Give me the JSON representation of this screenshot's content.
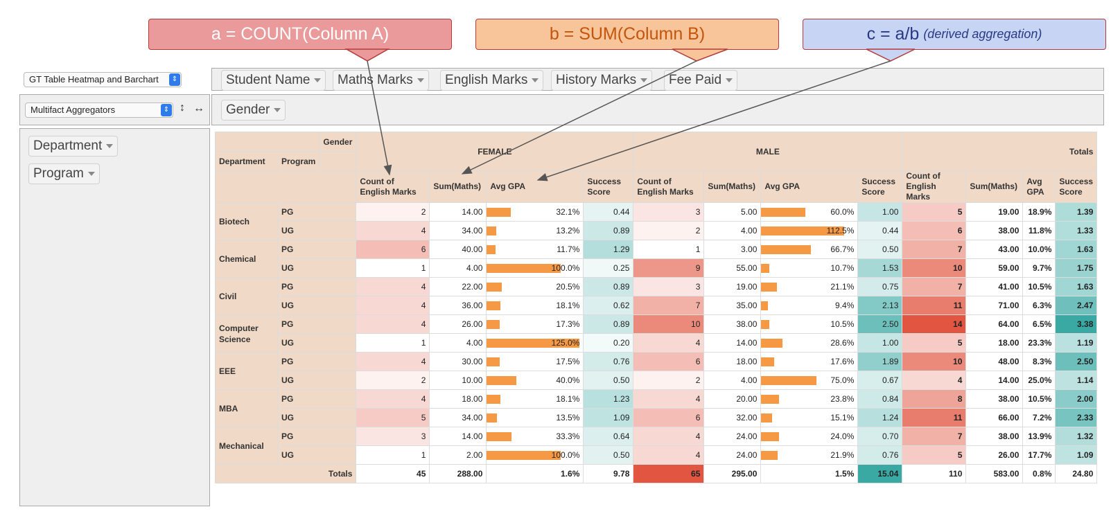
{
  "callouts": {
    "a": "a = COUNT(Column A)",
    "b": "b = SUM(Column B)",
    "c_main": "c = a/b",
    "c_note": "(derived aggregation)"
  },
  "controls": {
    "renderer": "GT Table Heatmap and Barchart",
    "aggregator": "Multifact Aggregators",
    "swap_vertical_icon": "↕",
    "swap_horizontal_icon": "↔"
  },
  "unused_fields": [
    "Student Name",
    "Maths Marks",
    "English Marks",
    "History Marks",
    "Fee Paid"
  ],
  "col_fields": [
    "Gender"
  ],
  "row_fields": [
    "Department",
    "Program"
  ],
  "table": {
    "gender_label": "Gender",
    "row_headers": [
      "Department",
      "Program"
    ],
    "groups": [
      "FEMALE",
      "MALE",
      "Totals"
    ],
    "measures": [
      "Count of English Marks",
      "Sum(Maths)",
      "Avg GPA",
      "Success Score"
    ],
    "totals_measures": [
      "Count of English Marks",
      "Sum(Maths)",
      "Avg GPA",
      "Success Score"
    ],
    "rows": [
      {
        "dept": "Biotech",
        "prog": "PG",
        "f": [
          "2",
          "14.00",
          "32.1%",
          "0.44"
        ],
        "m": [
          "3",
          "5.00",
          "60.0%",
          "1.00"
        ],
        "t": [
          "5",
          "19.00",
          "18.9%",
          "1.39"
        ]
      },
      {
        "dept": "",
        "prog": "UG",
        "f": [
          "4",
          "34.00",
          "13.2%",
          "0.89"
        ],
        "m": [
          "2",
          "4.00",
          "112.5%",
          "0.44"
        ],
        "t": [
          "6",
          "38.00",
          "11.8%",
          "1.33"
        ]
      },
      {
        "dept": "Chemical",
        "prog": "PG",
        "f": [
          "6",
          "40.00",
          "11.7%",
          "1.29"
        ],
        "m": [
          "1",
          "3.00",
          "66.7%",
          "0.50"
        ],
        "t": [
          "7",
          "43.00",
          "10.0%",
          "1.63"
        ]
      },
      {
        "dept": "",
        "prog": "UG",
        "f": [
          "1",
          "4.00",
          "100.0%",
          "0.25"
        ],
        "m": [
          "9",
          "55.00",
          "10.7%",
          "1.53"
        ],
        "t": [
          "10",
          "59.00",
          "9.7%",
          "1.75"
        ]
      },
      {
        "dept": "Civil",
        "prog": "PG",
        "f": [
          "4",
          "22.00",
          "20.5%",
          "0.89"
        ],
        "m": [
          "3",
          "19.00",
          "21.1%",
          "0.75"
        ],
        "t": [
          "7",
          "41.00",
          "10.5%",
          "1.63"
        ]
      },
      {
        "dept": "",
        "prog": "UG",
        "f": [
          "4",
          "36.00",
          "18.1%",
          "0.62"
        ],
        "m": [
          "7",
          "35.00",
          "9.4%",
          "2.13"
        ],
        "t": [
          "11",
          "71.00",
          "6.3%",
          "2.47"
        ]
      },
      {
        "dept": "Computer Science",
        "prog": "PG",
        "f": [
          "4",
          "26.00",
          "17.3%",
          "0.89"
        ],
        "m": [
          "10",
          "38.00",
          "10.5%",
          "2.50"
        ],
        "t": [
          "14",
          "64.00",
          "6.5%",
          "3.38"
        ]
      },
      {
        "dept": "",
        "prog": "UG",
        "f": [
          "1",
          "4.00",
          "125.0%",
          "0.20"
        ],
        "m": [
          "4",
          "14.00",
          "28.6%",
          "1.00"
        ],
        "t": [
          "5",
          "18.00",
          "23.3%",
          "1.19"
        ]
      },
      {
        "dept": "EEE",
        "prog": "PG",
        "f": [
          "4",
          "30.00",
          "17.5%",
          "0.76"
        ],
        "m": [
          "6",
          "18.00",
          "17.6%",
          "1.89"
        ],
        "t": [
          "10",
          "48.00",
          "8.3%",
          "2.50"
        ]
      },
      {
        "dept": "",
        "prog": "UG",
        "f": [
          "2",
          "10.00",
          "40.0%",
          "0.50"
        ],
        "m": [
          "2",
          "4.00",
          "75.0%",
          "0.67"
        ],
        "t": [
          "4",
          "14.00",
          "25.0%",
          "1.14"
        ]
      },
      {
        "dept": "MBA",
        "prog": "PG",
        "f": [
          "4",
          "18.00",
          "18.1%",
          "1.23"
        ],
        "m": [
          "4",
          "20.00",
          "23.8%",
          "0.84"
        ],
        "t": [
          "8",
          "38.00",
          "10.5%",
          "2.00"
        ]
      },
      {
        "dept": "",
        "prog": "UG",
        "f": [
          "5",
          "34.00",
          "13.5%",
          "1.09"
        ],
        "m": [
          "6",
          "32.00",
          "15.1%",
          "1.24"
        ],
        "t": [
          "11",
          "66.00",
          "7.2%",
          "2.33"
        ]
      },
      {
        "dept": "Mechanical",
        "prog": "PG",
        "f": [
          "3",
          "14.00",
          "33.3%",
          "0.64"
        ],
        "m": [
          "4",
          "24.00",
          "24.0%",
          "0.70"
        ],
        "t": [
          "7",
          "38.00",
          "13.9%",
          "1.32"
        ]
      },
      {
        "dept": "",
        "prog": "UG",
        "f": [
          "1",
          "2.00",
          "100.0%",
          "0.50"
        ],
        "m": [
          "4",
          "24.00",
          "21.9%",
          "0.76"
        ],
        "t": [
          "5",
          "26.00",
          "17.7%",
          "1.09"
        ]
      }
    ],
    "totals_label": "Totals",
    "totals": {
      "f": [
        "45",
        "288.00",
        "1.6%",
        "9.78"
      ],
      "m": [
        "65",
        "295.00",
        "1.5%",
        "15.04"
      ],
      "t": [
        "110",
        "583.00",
        "0.8%",
        "24.80"
      ]
    }
  },
  "colors": {
    "heat_red": "#e25641",
    "heat_teal": "#3aa9a3",
    "bar_orange": "#f69944",
    "header_bg": "#f0d9c6",
    "callout_red": "#ea9a9a",
    "callout_orange": "#f8c59a",
    "callout_blue": "#c8d4f3"
  }
}
